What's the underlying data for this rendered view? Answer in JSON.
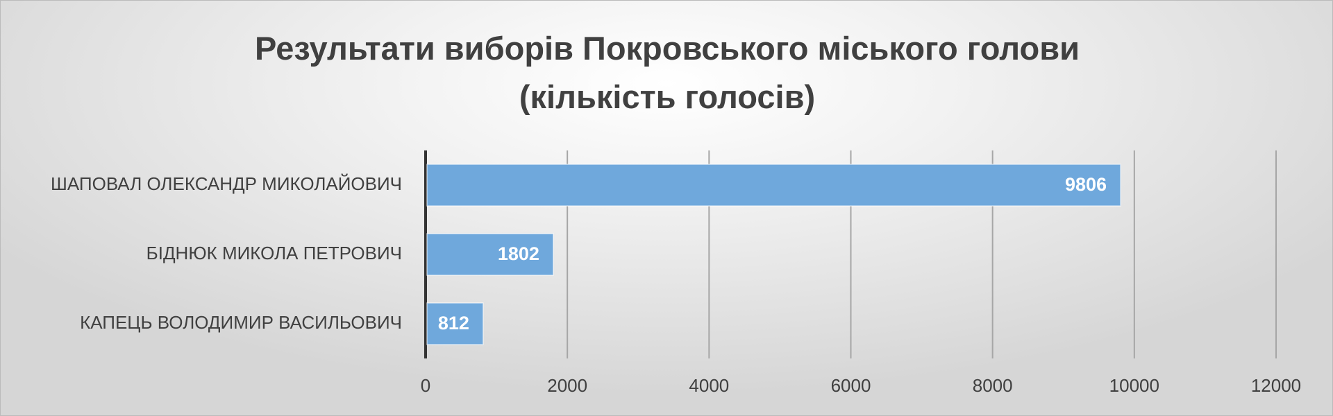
{
  "chart_data": {
    "type": "bar",
    "orientation": "horizontal",
    "title": "Результати виборів Покровського міського голови (кількість голосів)",
    "categories": [
      "ШАПОВАЛ ОЛЕКСАНДР МИКОЛАЙОВИЧ",
      "БІДНЮК МИКОЛА ПЕТРОВИЧ",
      "КАПЕЦЬ ВОЛОДИМИР ВАСИЛЬОВИЧ"
    ],
    "values": [
      9806,
      1802,
      812
    ],
    "color": "#6fa8dc",
    "xlim": [
      0,
      12000
    ],
    "xticks": [
      0,
      2000,
      4000,
      6000,
      8000,
      10000,
      12000
    ],
    "grid": true
  }
}
